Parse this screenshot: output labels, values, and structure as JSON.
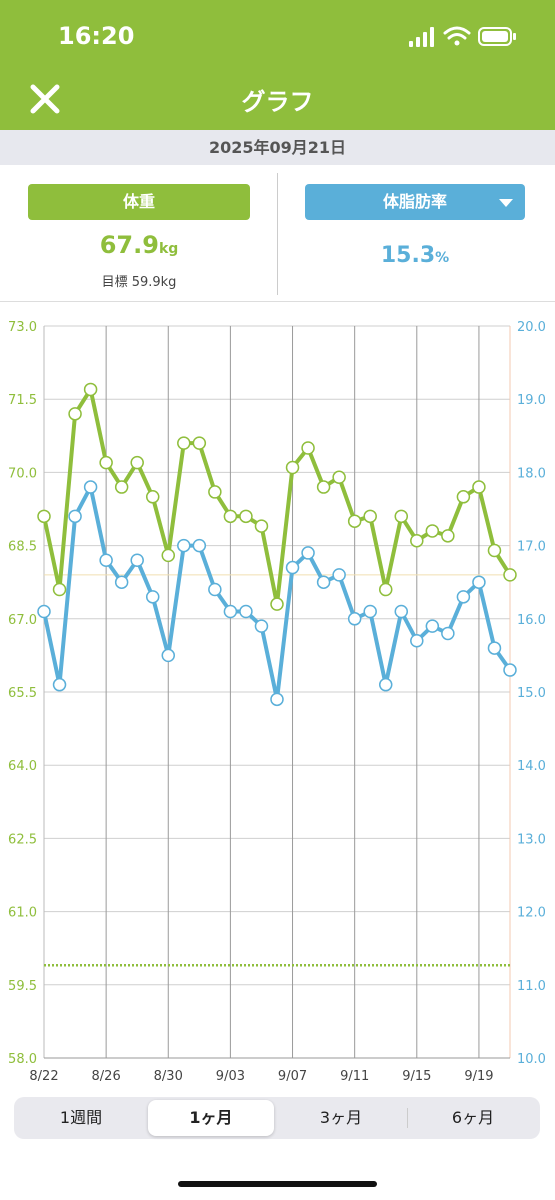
{
  "status": {
    "time": "16:20"
  },
  "header": {
    "title": "グラフ"
  },
  "date_label": "2025年09月21日",
  "metrics": {
    "weight_button": "体重",
    "weight_value": "67.9",
    "weight_unit": "kg",
    "goal_text": "目標 59.9kg",
    "fat_button": "体脂肪率",
    "fat_value": "15.3",
    "fat_unit": "%"
  },
  "periods": [
    "1週間",
    "1ヶ月",
    "3ヶ月",
    "6ヶ月"
  ],
  "active_period": "1ヶ月",
  "colors": {
    "green": "#8fbe3c",
    "blue": "#5aafd9"
  },
  "chart_data": {
    "type": "line",
    "x_labels": [
      "8/22",
      "8/26",
      "8/30",
      "9/03",
      "9/07",
      "9/11",
      "9/15",
      "9/19"
    ],
    "left_axis": {
      "ticks": [
        "73.0",
        "71.5",
        "70.0",
        "68.5",
        "67.0",
        "65.5",
        "64.0",
        "62.5",
        "61.0",
        "59.5",
        "58.0"
      ],
      "ylim": [
        58.0,
        73.0
      ]
    },
    "right_axis": {
      "ticks": [
        "20.0",
        "19.0",
        "18.0",
        "17.0",
        "16.0",
        "15.0",
        "14.0",
        "13.0",
        "12.0",
        "11.0",
        "10.0"
      ],
      "ylim": [
        10.0,
        20.0
      ]
    },
    "x_days": [
      0,
      1,
      2,
      3,
      4,
      5,
      6,
      7,
      8,
      9,
      10,
      11,
      12,
      13,
      14,
      15,
      16,
      17,
      18,
      19,
      20,
      21,
      22,
      23,
      24,
      25,
      26,
      27,
      28,
      29,
      30
    ],
    "series": [
      {
        "axis": "left",
        "values": [
          69.1,
          67.6,
          71.2,
          71.7,
          70.2,
          69.7,
          70.2,
          69.5,
          68.3,
          70.6,
          70.6,
          69.6,
          69.1,
          69.1,
          68.9,
          67.3,
          70.1,
          70.5,
          69.7,
          69.9,
          69.0,
          69.1,
          67.6,
          69.1,
          68.6,
          68.8,
          68.7,
          69.5,
          69.7,
          68.4,
          67.9
        ]
      },
      {
        "axis": "right",
        "values": [
          16.1,
          15.1,
          17.4,
          17.8,
          16.8,
          16.5,
          16.8,
          16.3,
          15.5,
          17.0,
          17.0,
          16.4,
          16.1,
          16.1,
          15.9,
          14.9,
          16.7,
          16.9,
          16.5,
          16.6,
          16.0,
          16.1,
          15.1,
          16.1,
          15.7,
          15.9,
          15.8,
          16.3,
          16.5,
          15.6,
          15.3
        ]
      }
    ],
    "goal_line": {
      "axis": "left",
      "value": 59.9
    },
    "reference_line": {
      "axis": "left",
      "value": 67.9
    },
    "grid": true
  }
}
